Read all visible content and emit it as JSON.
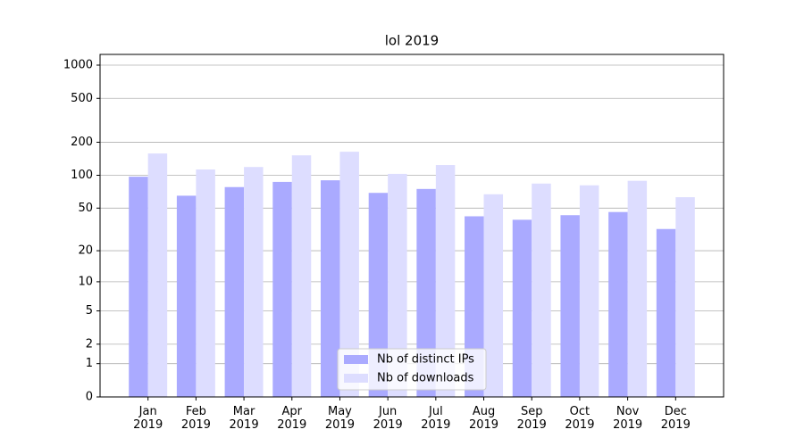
{
  "chart_data": {
    "type": "bar",
    "title": "lol 2019",
    "categories": [
      "Jan\n2019",
      "Feb\n2019",
      "Mar\n2019",
      "Apr\n2019",
      "May\n2019",
      "Jun\n2019",
      "Jul\n2019",
      "Aug\n2019",
      "Sep\n2019",
      "Oct\n2019",
      "Nov\n2019",
      "Dec\n2019"
    ],
    "series": [
      {
        "name": "Nb of distinct IPs",
        "color": "#aaaaff",
        "values": [
          97,
          65,
          78,
          87,
          90,
          69,
          75,
          42,
          39,
          43,
          46,
          32
        ]
      },
      {
        "name": "Nb of downloads",
        "color": "#ddddff",
        "values": [
          158,
          113,
          119,
          152,
          164,
          103,
          124,
          67,
          84,
          81,
          89,
          63
        ]
      }
    ],
    "yscale": "log1p",
    "ylim": [
      0,
      1250
    ],
    "yticks": [
      0,
      1,
      2,
      5,
      10,
      20,
      50,
      100,
      200,
      500,
      1000
    ],
    "grid": true,
    "legend": "lower center"
  }
}
